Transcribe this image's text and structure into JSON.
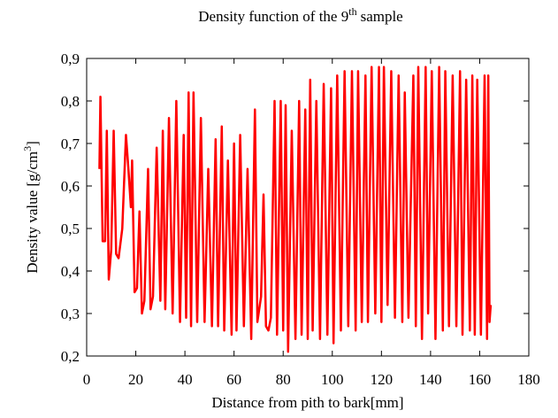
{
  "chart_data": {
    "type": "line",
    "title": "Density function of the 9",
    "title_superscript": "th",
    "title_end": "sample",
    "xlabel": "Distance from pith to bark[mm]",
    "ylabel": "Density value [g/cm",
    "ylabel_superscript": "3",
    "ylabel_end": "]",
    "color": "#ff0000",
    "xlim": [
      0,
      180
    ],
    "xticks": [
      0,
      20,
      40,
      60,
      80,
      100,
      120,
      140,
      160,
      180
    ],
    "ylim": [
      0.2,
      0.9
    ],
    "yticks": [
      {
        "value": 0.2,
        "label": "0,2"
      },
      {
        "value": 0.3,
        "label": "0,3"
      },
      {
        "value": 0.4,
        "label": "0,4"
      },
      {
        "value": 0.5,
        "label": "0,5"
      },
      {
        "value": 0.6,
        "label": "0,6"
      },
      {
        "value": 0.7,
        "label": "0,7"
      },
      {
        "value": 0.8,
        "label": "0,8"
      },
      {
        "value": 0.9,
        "label": "0,9"
      }
    ],
    "x": [
      5.2,
      5.6,
      6.5,
      7.5,
      8.2,
      9,
      10,
      11,
      12,
      13,
      14.5,
      16,
      17,
      18,
      18.5,
      19.5,
      20.5,
      21.5,
      22.5,
      23.5,
      25,
      26,
      27,
      28.5,
      30,
      31,
      32,
      33.5,
      35,
      36.5,
      38,
      39.5,
      40.5,
      41.5,
      42.5,
      43.5,
      45,
      46.5,
      48,
      49.5,
      51,
      52.5,
      53.5,
      55,
      56,
      57.5,
      59,
      60,
      61,
      62.5,
      64,
      65.5,
      67,
      68.5,
      69.5,
      71,
      72,
      73,
      74,
      75,
      76.5,
      77.5,
      79,
      80,
      81,
      82,
      83.5,
      85,
      86.5,
      87.5,
      89,
      90,
      91,
      92,
      93.5,
      95,
      96.5,
      98,
      99.5,
      100.5,
      102,
      103.5,
      105,
      106.5,
      108,
      109.5,
      110.5,
      112,
      113.5,
      114.5,
      116,
      117.5,
      119,
      120,
      121,
      122.5,
      124,
      125.5,
      127,
      128.5,
      129.5,
      131,
      133,
      134,
      135,
      136.5,
      138,
      139,
      140.5,
      142,
      143.5,
      145,
      146,
      147.5,
      149,
      150.5,
      152,
      153,
      154.5,
      156,
      157,
      158,
      159,
      160.5,
      162,
      163,
      163.5,
      164,
      164.5
    ],
    "values": [
      0.64,
      0.81,
      0.47,
      0.47,
      0.73,
      0.38,
      0.45,
      0.73,
      0.44,
      0.43,
      0.5,
      0.72,
      0.64,
      0.55,
      0.66,
      0.35,
      0.36,
      0.54,
      0.3,
      0.33,
      0.64,
      0.31,
      0.34,
      0.69,
      0.33,
      0.73,
      0.31,
      0.76,
      0.3,
      0.8,
      0.28,
      0.72,
      0.29,
      0.82,
      0.27,
      0.82,
      0.28,
      0.76,
      0.28,
      0.64,
      0.27,
      0.71,
      0.27,
      0.74,
      0.26,
      0.66,
      0.25,
      0.7,
      0.26,
      0.72,
      0.27,
      0.64,
      0.24,
      0.78,
      0.28,
      0.34,
      0.58,
      0.27,
      0.26,
      0.29,
      0.8,
      0.25,
      0.8,
      0.26,
      0.79,
      0.21,
      0.73,
      0.24,
      0.8,
      0.25,
      0.78,
      0.24,
      0.85,
      0.26,
      0.8,
      0.24,
      0.84,
      0.25,
      0.83,
      0.23,
      0.86,
      0.26,
      0.87,
      0.27,
      0.87,
      0.26,
      0.87,
      0.28,
      0.86,
      0.28,
      0.88,
      0.3,
      0.88,
      0.28,
      0.88,
      0.32,
      0.87,
      0.29,
      0.86,
      0.28,
      0.82,
      0.29,
      0.86,
      0.27,
      0.88,
      0.24,
      0.88,
      0.3,
      0.87,
      0.24,
      0.88,
      0.26,
      0.87,
      0.27,
      0.86,
      0.27,
      0.87,
      0.25,
      0.85,
      0.26,
      0.86,
      0.25,
      0.85,
      0.25,
      0.86,
      0.24,
      0.86,
      0.28,
      0.32
    ]
  }
}
